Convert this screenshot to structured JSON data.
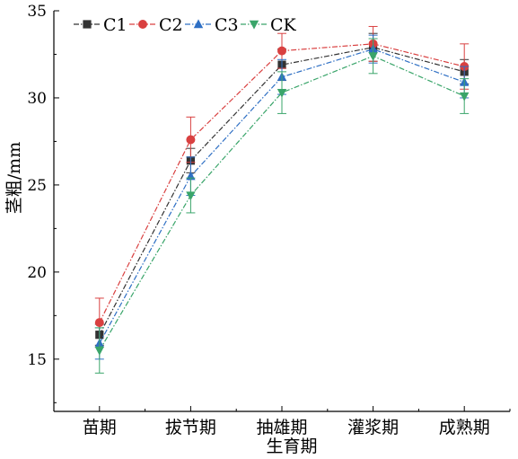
{
  "chart_data": {
    "type": "line",
    "categories": [
      "苗期",
      "拔节期",
      "抽雄期",
      "灌浆期",
      "成熟期"
    ],
    "xlabel": "生育期",
    "ylabel": "茎粗/mm",
    "ylim": [
      12,
      35
    ],
    "yticks": [
      15,
      20,
      25,
      30,
      35
    ],
    "grid": false,
    "legend_position": "top-left",
    "series": [
      {
        "name": "C1",
        "color": "#333333",
        "marker": "square",
        "values": [
          16.4,
          26.4,
          31.9,
          32.9,
          31.5
        ],
        "errors": [
          0.6,
          0.7,
          0.9,
          0.8,
          0.7
        ]
      },
      {
        "name": "C2",
        "color": "#d94040",
        "marker": "circle",
        "values": [
          17.1,
          27.6,
          32.7,
          33.1,
          31.8
        ],
        "errors": [
          1.4,
          1.3,
          1.0,
          1.0,
          1.3
        ]
      },
      {
        "name": "C3",
        "color": "#2e6fc4",
        "marker": "triangle-up",
        "values": [
          15.9,
          25.5,
          31.2,
          32.8,
          30.9
        ],
        "errors": [
          0.9,
          1.1,
          1.0,
          0.8,
          0.9
        ]
      },
      {
        "name": "CK",
        "color": "#3aa56a",
        "marker": "triangle-down",
        "values": [
          15.5,
          24.4,
          30.3,
          32.4,
          30.1
        ],
        "errors": [
          1.3,
          1.0,
          1.2,
          1.0,
          1.0
        ]
      }
    ]
  }
}
